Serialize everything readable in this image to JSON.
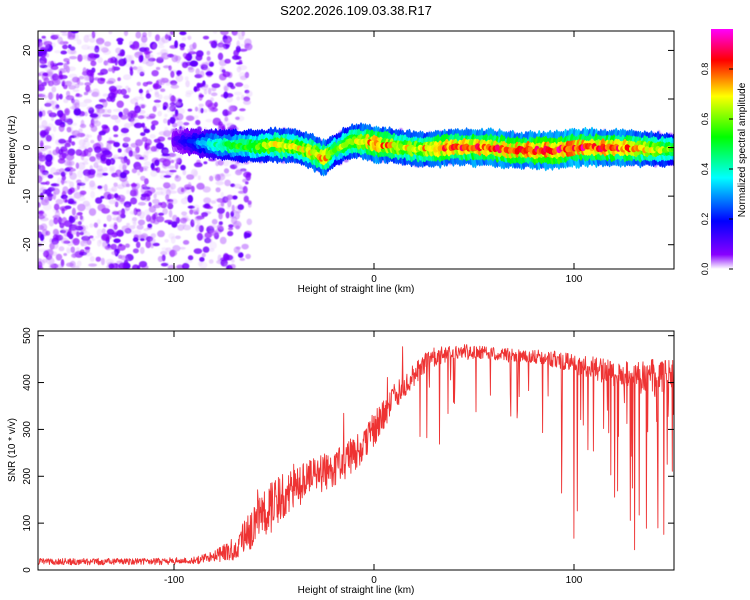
{
  "title": "S202.2026.109.03.38.R17",
  "chart_data": [
    {
      "type": "heatmap",
      "xlabel": "Height of straight line (km)",
      "ylabel": "Frequency (Hz)",
      "xlim": [
        -168,
        150
      ],
      "ylim": [
        -25,
        24
      ],
      "xticks": [
        -100,
        0,
        100
      ],
      "yticks": [
        -20,
        -10,
        0,
        10,
        20
      ],
      "colorbar": {
        "label": "Normalized spectral amplitude",
        "range": [
          0,
          0.96
        ],
        "ticks": [
          "0.0",
          "0.2",
          "0.4",
          "0.6",
          "0.8"
        ],
        "tick_values": [
          0.0,
          0.2,
          0.4,
          0.6,
          0.8
        ],
        "colors": [
          "#ffffff",
          "#8800ff",
          "#0000ff",
          "#00ffff",
          "#00ff00",
          "#ffff00",
          "#ff0000",
          "#ff00ff"
        ]
      },
      "noise_region": {
        "x_range": [
          -168,
          -68
        ],
        "freq_range": [
          -25,
          24
        ],
        "amplitude_range": [
          0.0,
          0.15
        ]
      },
      "ridge": {
        "x": [
          -100,
          -90,
          -80,
          -70,
          -60,
          -50,
          -40,
          -30,
          -25,
          -20,
          -10,
          0,
          10,
          20,
          30,
          40,
          50,
          60,
          70,
          80,
          90,
          100,
          110,
          120,
          130,
          140,
          150
        ],
        "freq": [
          1.5,
          1.0,
          0.6,
          0.4,
          0.2,
          0.5,
          0.3,
          -1.0,
          -2.3,
          -0.5,
          1.5,
          0.8,
          0.3,
          -0.2,
          -0.3,
          0.1,
          0.1,
          -0.1,
          -0.5,
          -0.6,
          -0.6,
          0.0,
          0.0,
          0.0,
          -0.2,
          -0.4,
          -0.4
        ],
        "amplitude": [
          0.1,
          0.25,
          0.45,
          0.55,
          0.6,
          0.7,
          0.7,
          0.75,
          0.8,
          0.6,
          0.7,
          0.85,
          0.75,
          0.7,
          0.8,
          0.85,
          0.85,
          0.85,
          0.85,
          0.9,
          0.9,
          0.9,
          0.9,
          0.85,
          0.8,
          0.7,
          0.6
        ]
      }
    },
    {
      "type": "line",
      "xlabel": "Height of straight line (km)",
      "ylabel": "SNR (10 * v/v)",
      "xlim": [
        -168,
        150
      ],
      "ylim": [
        0,
        510
      ],
      "xticks": [
        -100,
        0,
        100
      ],
      "yticks": [
        0,
        100,
        200,
        300,
        400,
        500
      ],
      "color": "#ee3333",
      "envelope": {
        "x": [
          -168,
          -140,
          -110,
          -90,
          -80,
          -70,
          -60,
          -50,
          -40,
          -30,
          -20,
          -10,
          0,
          10,
          20,
          25,
          30,
          40,
          50,
          60,
          70,
          80,
          90,
          100,
          110,
          120,
          130,
          140,
          150
        ],
        "mean": [
          18,
          18,
          18,
          20,
          28,
          45,
          95,
          140,
          175,
          200,
          215,
          245,
          300,
          370,
          415,
          440,
          455,
          465,
          465,
          460,
          458,
          455,
          450,
          440,
          430,
          420,
          415,
          410,
          410
        ],
        "noise": [
          7,
          7,
          7,
          8,
          12,
          25,
          45,
          55,
          45,
          40,
          40,
          40,
          35,
          30,
          25,
          22,
          20,
          18,
          15,
          15,
          15,
          15,
          18,
          20,
          25,
          30,
          35,
          40,
          45
        ]
      }
    }
  ]
}
